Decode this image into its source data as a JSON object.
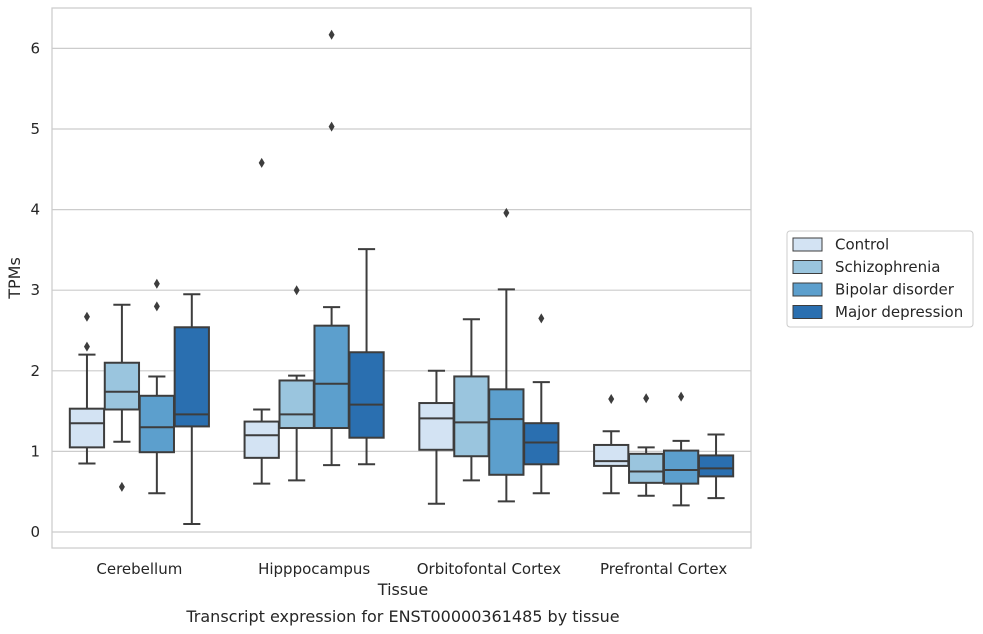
{
  "chart_data": {
    "type": "box",
    "xlabel": "Tissue",
    "ylabel": "TPMs",
    "caption": "Transcript expression for ENST00000361485 by tissue",
    "ylim": [
      -0.2,
      6.5
    ],
    "yticks": [
      0,
      1,
      2,
      3,
      4,
      5,
      6
    ],
    "grid": "horizontal",
    "legend_position": "right",
    "categories": [
      "Cerebellum",
      "Hipppocampus",
      "Orbitofontal Cortex",
      "Prefrontal Cortex"
    ],
    "series": [
      {
        "name": "Control",
        "color": "#d3e3f3",
        "boxes": [
          {
            "whislo": 0.85,
            "q1": 1.05,
            "med": 1.35,
            "q3": 1.53,
            "whishi": 2.2,
            "fliers": [
              2.3,
              2.67
            ]
          },
          {
            "whislo": 0.6,
            "q1": 0.92,
            "med": 1.2,
            "q3": 1.37,
            "whishi": 1.52,
            "fliers": [
              4.58
            ]
          },
          {
            "whislo": 0.35,
            "q1": 1.02,
            "med": 1.41,
            "q3": 1.6,
            "whishi": 2.0,
            "fliers": []
          },
          {
            "whislo": 0.48,
            "q1": 0.82,
            "med": 0.88,
            "q3": 1.08,
            "whishi": 1.25,
            "fliers": [
              1.65
            ]
          }
        ]
      },
      {
        "name": "Schizophrenia",
        "color": "#9ac5de",
        "boxes": [
          {
            "whislo": 1.12,
            "q1": 1.52,
            "med": 1.74,
            "q3": 2.1,
            "whishi": 2.82,
            "fliers": [
              0.56
            ]
          },
          {
            "whislo": 0.64,
            "q1": 1.29,
            "med": 1.46,
            "q3": 1.88,
            "whishi": 1.94,
            "fliers": [
              3.0
            ]
          },
          {
            "whislo": 0.64,
            "q1": 0.94,
            "med": 1.36,
            "q3": 1.93,
            "whishi": 2.64,
            "fliers": []
          },
          {
            "whislo": 0.45,
            "q1": 0.61,
            "med": 0.75,
            "q3": 0.97,
            "whishi": 1.05,
            "fliers": [
              1.66
            ]
          }
        ]
      },
      {
        "name": "Bipolar disorder",
        "color": "#5c9fcd",
        "boxes": [
          {
            "whislo": 0.48,
            "q1": 0.99,
            "med": 1.3,
            "q3": 1.69,
            "whishi": 1.93,
            "fliers": [
              2.8,
              3.08
            ]
          },
          {
            "whislo": 0.83,
            "q1": 1.29,
            "med": 1.84,
            "q3": 2.56,
            "whishi": 2.79,
            "fliers": [
              5.03,
              6.17
            ]
          },
          {
            "whislo": 0.38,
            "q1": 0.71,
            "med": 1.4,
            "q3": 1.77,
            "whishi": 3.01,
            "fliers": [
              3.96
            ]
          },
          {
            "whislo": 0.33,
            "q1": 0.6,
            "med": 0.77,
            "q3": 1.01,
            "whishi": 1.13,
            "fliers": [
              1.68
            ]
          }
        ]
      },
      {
        "name": "Major depression",
        "color": "#2a6fb0",
        "boxes": [
          {
            "whislo": 0.1,
            "q1": 1.31,
            "med": 1.46,
            "q3": 2.54,
            "whishi": 2.95,
            "fliers": []
          },
          {
            "whislo": 0.84,
            "q1": 1.17,
            "med": 1.58,
            "q3": 2.23,
            "whishi": 3.51,
            "fliers": []
          },
          {
            "whislo": 0.48,
            "q1": 0.84,
            "med": 1.11,
            "q3": 1.35,
            "whishi": 1.86,
            "fliers": [
              2.65
            ]
          },
          {
            "whislo": 0.42,
            "q1": 0.69,
            "med": 0.79,
            "q3": 0.95,
            "whishi": 1.21,
            "fliers": []
          }
        ]
      }
    ]
  }
}
